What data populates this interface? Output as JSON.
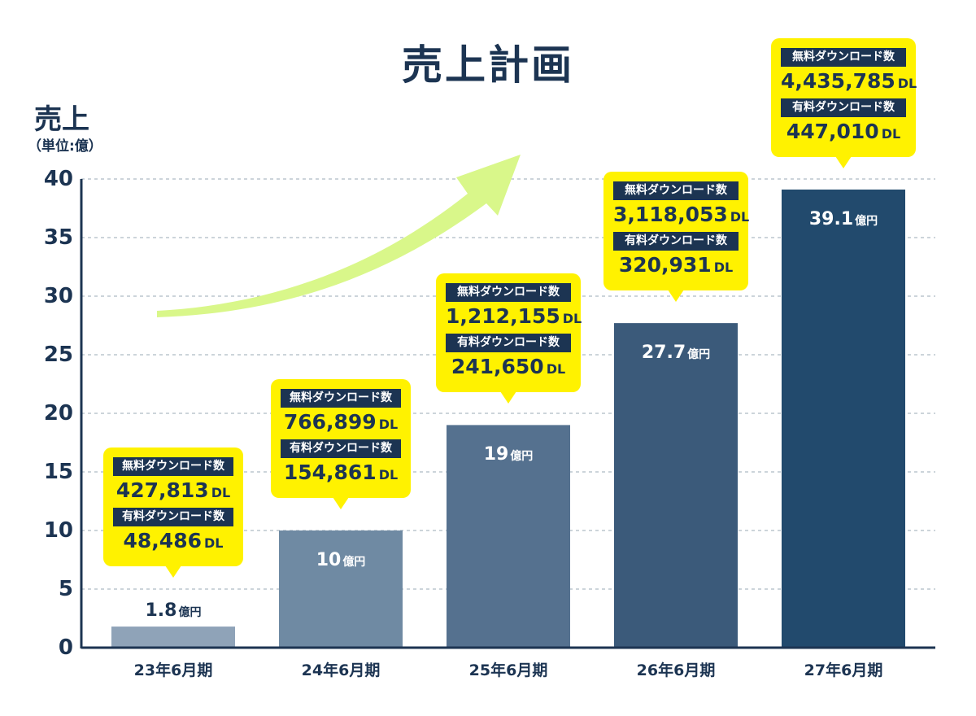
{
  "title": "売上計画",
  "y_axis": {
    "label": "売上",
    "unit": "（単位:億）"
  },
  "colors": {
    "text": "#1c3452",
    "callout": "#fff200",
    "arrow": "#d9f78a",
    "bars": [
      "#8fa3b8",
      "#6f8aa3",
      "#55718f",
      "#3b5a7a",
      "#224a6d"
    ]
  },
  "icons": {
    "growth": "up-right-arrow"
  },
  "chart_data": {
    "type": "bar",
    "title": "売上計画",
    "ylabel": "売上",
    "yunit": "（単位:億）",
    "ylim": [
      0,
      40
    ],
    "yticks": [
      "0",
      "5",
      "10",
      "15",
      "20",
      "25",
      "30",
      "35",
      "40"
    ],
    "grid": true,
    "categories": [
      "23年6月期",
      "24年6月期",
      "25年6月期",
      "26年6月期",
      "27年6月期"
    ],
    "values": [
      1.8,
      10,
      19,
      27.7,
      39.1
    ],
    "value_labels": [
      "1.8",
      "10",
      "19",
      "27.7",
      "39.1"
    ],
    "value_unit": "億円",
    "annotations": [
      {
        "free_label": "無料ダウンロード数",
        "free": "427,813",
        "paid_label": "有料ダウンロード数",
        "paid": "48,486",
        "unit": "DL"
      },
      {
        "free_label": "無料ダウンロード数",
        "free": "766,899",
        "paid_label": "有料ダウンロード数",
        "paid": "154,861",
        "unit": "DL"
      },
      {
        "free_label": "無料ダウンロード数",
        "free": "1,212,155",
        "paid_label": "有料ダウンロード数",
        "paid": "241,650",
        "unit": "DL"
      },
      {
        "free_label": "無料ダウンロード数",
        "free": "3,118,053",
        "paid_label": "有料ダウンロード数",
        "paid": "320,931",
        "unit": "DL"
      },
      {
        "free_label": "無料ダウンロード数",
        "free": "4,435,785",
        "paid_label": "有料ダウンロード数",
        "paid": "447,010",
        "unit": "DL"
      }
    ]
  }
}
